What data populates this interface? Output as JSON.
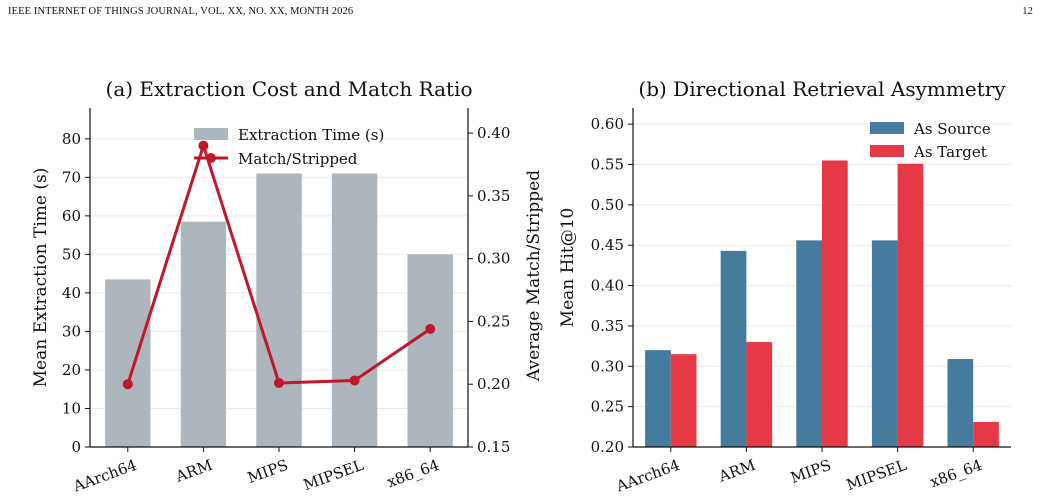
{
  "header": {
    "left": "IEEE INTERNET OF THINGS JOURNAL, VOL. XX, NO. XX, MONTH 2026",
    "right": "12"
  },
  "chart_data": [
    {
      "type": "bar",
      "title": "(a) Extraction Cost and Match Ratio",
      "categories": [
        "AArch64",
        "ARM",
        "MIPS",
        "MIPSEL",
        "x86_64"
      ],
      "xlabel": "",
      "ylabel": "Mean Extraction Time (s)",
      "ylim": [
        0,
        88
      ],
      "yticks": [
        0,
        10,
        20,
        30,
        40,
        50,
        60,
        70,
        80
      ],
      "y2label": "Average Match/Stripped",
      "y2lim": [
        0.15,
        0.42
      ],
      "y2ticks": [
        "0.15",
        "0.20",
        "0.25",
        "0.30",
        "0.35",
        "0.40"
      ],
      "grid": true,
      "legend_position": "top-center",
      "series": [
        {
          "name": "Extraction Time (s)",
          "type": "bar",
          "axis": "left",
          "color": "#adb5bd",
          "values": [
            43.5,
            58.5,
            71,
            71,
            50
          ]
        },
        {
          "name": "Match/Stripped",
          "type": "line",
          "axis": "right",
          "color": "#c0182a",
          "values": [
            0.2,
            0.39,
            0.201,
            0.203,
            0.244
          ]
        }
      ]
    },
    {
      "type": "bar",
      "title": "(b) Directional Retrieval Asymmetry",
      "categories": [
        "AArch64",
        "ARM",
        "MIPS",
        "MIPSEL",
        "x86_64"
      ],
      "xlabel": "",
      "ylabel": "Mean Hit@10",
      "ylim": [
        0.2,
        0.62
      ],
      "yticks": [
        "0.20",
        "0.25",
        "0.30",
        "0.35",
        "0.40",
        "0.45",
        "0.50",
        "0.55",
        "0.60"
      ],
      "grid": true,
      "legend_position": "top-right",
      "series": [
        {
          "name": "As Source",
          "color": "#457b9d",
          "values": [
            0.32,
            0.443,
            0.456,
            0.456,
            0.309
          ]
        },
        {
          "name": "As Target",
          "color": "#e63946",
          "values": [
            0.315,
            0.33,
            0.555,
            0.551,
            0.231
          ]
        }
      ]
    }
  ]
}
